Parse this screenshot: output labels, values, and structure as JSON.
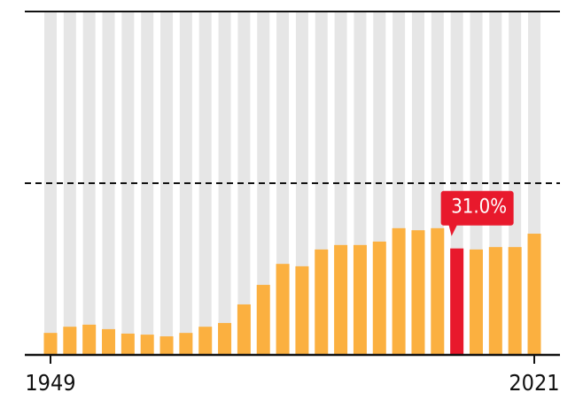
{
  "chart_data": {
    "type": "bar",
    "categories": [
      "1949",
      null,
      null,
      null,
      null,
      null,
      null,
      null,
      null,
      null,
      null,
      null,
      null,
      null,
      null,
      null,
      null,
      null,
      null,
      null,
      null,
      null,
      null,
      null,
      null,
      "2021"
    ],
    "values": [
      6.4,
      8.2,
      8.8,
      7.5,
      6.2,
      5.9,
      5.4,
      6.4,
      8.2,
      9.3,
      14.7,
      20.4,
      26.5,
      25.8,
      30.7,
      32.0,
      32.0,
      33.0,
      36.9,
      36.3,
      36.9,
      31.0,
      30.7,
      31.4,
      31.4,
      35.3
    ],
    "value_labels": [
      null,
      null,
      null,
      null,
      null,
      null,
      null,
      null,
      null,
      null,
      null,
      null,
      null,
      null,
      null,
      null,
      null,
      null,
      null,
      null,
      null,
      "31.0%",
      null,
      null,
      null,
      null
    ],
    "color": "#fbb040",
    "highlight_color": "#e8192c",
    "highlight": 21,
    "background_color": "#e6e6e6",
    "ylim": [
      0,
      100
    ],
    "yticks": [
      50,
      100
    ],
    "grid": true
  }
}
